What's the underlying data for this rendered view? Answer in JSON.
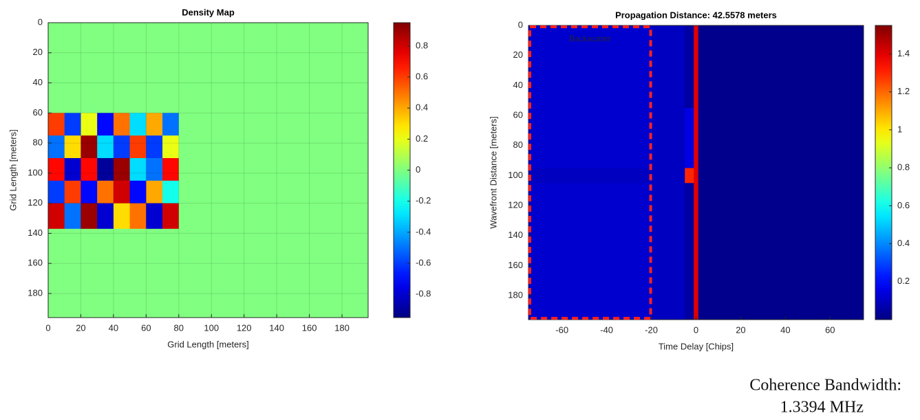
{
  "chart_data": [
    {
      "type": "heatmap",
      "title": "Density Map",
      "xlabel": "Grid Length [meters]",
      "ylabel": "Grid Length [meters]",
      "x": [
        0,
        10,
        20,
        30,
        40,
        50,
        60,
        70,
        80,
        196
      ],
      "y": [
        0,
        60,
        75,
        90,
        105,
        120,
        137,
        196
      ],
      "z": [
        [
          0,
          0,
          0,
          0,
          0,
          0,
          0,
          0,
          0
        ],
        [
          0.6,
          -0.6,
          0.2,
          -0.7,
          0.5,
          -0.3,
          0.4,
          -0.5,
          0
        ],
        [
          -0.5,
          0.3,
          0.9,
          -0.3,
          -0.6,
          0.6,
          -0.6,
          0.2,
          0
        ],
        [
          0.7,
          -0.8,
          0.7,
          -0.9,
          0.9,
          -0.3,
          -0.5,
          0.7,
          0
        ],
        [
          -0.6,
          0.6,
          -0.7,
          0.5,
          0.8,
          -0.7,
          0.4,
          -0.2,
          0
        ],
        [
          0.8,
          -0.5,
          0.9,
          -0.8,
          0.3,
          0.5,
          -0.8,
          0.8,
          0
        ],
        [
          0,
          0,
          0,
          0,
          0,
          0,
          0,
          0,
          0
        ]
      ],
      "xlim": [
        0,
        196
      ],
      "ylim": [
        0,
        196
      ],
      "yreverse": true,
      "xticks": [
        0,
        20,
        40,
        60,
        80,
        100,
        120,
        140,
        160,
        180
      ],
      "yticks": [
        0,
        20,
        40,
        60,
        80,
        100,
        120,
        140,
        160,
        180
      ],
      "grid": true,
      "colormap": "jet",
      "clim": [
        -0.95,
        0.95
      ],
      "cticks": [
        0.8,
        0.6,
        0.4,
        0.2,
        0,
        -0.2,
        -0.4,
        -0.6,
        -0.8
      ]
    },
    {
      "type": "heatmap",
      "title": "Propagation Distance: 42.5578 meters",
      "xlabel": "Time Delay [Chips]",
      "ylabel": "Wavefront Distance [meters]",
      "x": [
        -75,
        -20,
        -5,
        -1,
        1,
        75
      ],
      "y": [
        0,
        55,
        95,
        105,
        196
      ],
      "z": [
        [
          0.12,
          0.1,
          0.05,
          1.4,
          0.02
        ],
        [
          0.12,
          0.1,
          0.15,
          1.4,
          0.02
        ],
        [
          0.1,
          0.1,
          1.3,
          1.4,
          0.02
        ],
        [
          0.12,
          0.1,
          0.05,
          1.4,
          0.02
        ]
      ],
      "xlim": [
        -75,
        75
      ],
      "ylim": [
        0,
        196
      ],
      "yreverse": true,
      "xticks": [
        -60,
        -40,
        -20,
        0,
        20,
        40,
        60
      ],
      "yticks": [
        0,
        20,
        40,
        60,
        80,
        100,
        120,
        140,
        160,
        180
      ],
      "grid": false,
      "colormap": "jet",
      "clim": [
        0,
        1.55
      ],
      "cticks": [
        1.4,
        1.2,
        1,
        0.8,
        0.6,
        0.4,
        0.2
      ],
      "highlight": {
        "label": "Backscatter",
        "xlim": [
          -75,
          -20
        ],
        "color": "#ff2020"
      }
    }
  ],
  "caption": [
    "Coherence Bandwidth:",
    "1.3394 MHz"
  ]
}
